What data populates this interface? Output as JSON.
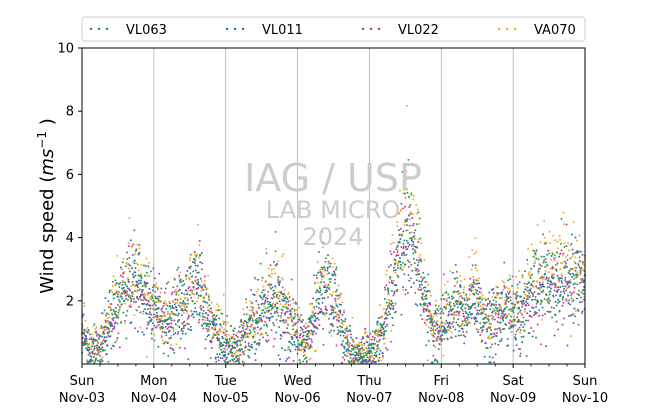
{
  "chart_data": {
    "type": "scatter",
    "ylabel_text": "Wind speed (",
    "ylabel_unit_base": "ms",
    "ylabel_unit_exp": "−1",
    "ylabel_close": " )",
    "ylim": [
      0,
      10
    ],
    "yticks": [
      "2",
      "4",
      "6",
      "8",
      "10"
    ],
    "xticks": [
      {
        "day": "Sun",
        "date": "Nov-03"
      },
      {
        "day": "Mon",
        "date": "Nov-04"
      },
      {
        "day": "Tue",
        "date": "Nov-05"
      },
      {
        "day": "Wed",
        "date": "Nov-06"
      },
      {
        "day": "Thu",
        "date": "Nov-07"
      },
      {
        "day": "Fri",
        "date": "Nov-08"
      },
      {
        "day": "Sat",
        "date": "Nov-09"
      },
      {
        "day": "Sun",
        "date": "Nov-10"
      }
    ],
    "x_days_range": [
      0,
      7
    ],
    "grid": "vertical",
    "legend_placement": "top",
    "watermark": [
      "IAG / USP",
      "LAB MICRO",
      "2024"
    ],
    "series": [
      {
        "name": "VL063",
        "color": "#1a9850",
        "profile": [
          [
            0.0,
            1.2
          ],
          [
            0.1,
            0.3
          ],
          [
            0.25,
            0.5
          ],
          [
            0.4,
            1.4
          ],
          [
            0.55,
            2.1
          ],
          [
            0.7,
            2.9
          ],
          [
            0.85,
            2.2
          ],
          [
            1.0,
            1.8
          ],
          [
            1.15,
            1.4
          ],
          [
            1.3,
            1.7
          ],
          [
            1.45,
            2.0
          ],
          [
            1.6,
            2.7
          ],
          [
            1.75,
            1.6
          ],
          [
            1.9,
            0.9
          ],
          [
            2.05,
            0.5
          ],
          [
            2.2,
            0.6
          ],
          [
            2.35,
            1.2
          ],
          [
            2.5,
            1.7
          ],
          [
            2.65,
            2.2
          ],
          [
            2.8,
            1.8
          ],
          [
            2.95,
            1.3
          ],
          [
            3.1,
            0.6
          ],
          [
            3.2,
            1.2
          ],
          [
            3.35,
            2.6
          ],
          [
            3.5,
            2.1
          ],
          [
            3.62,
            1.1
          ],
          [
            3.75,
            0.3
          ],
          [
            3.85,
            0.2
          ],
          [
            4.0,
            0.3
          ],
          [
            4.1,
            0.6
          ],
          [
            4.2,
            1.2
          ],
          [
            4.3,
            2.4
          ],
          [
            4.42,
            3.6
          ],
          [
            4.55,
            4.4
          ],
          [
            4.65,
            3.6
          ],
          [
            4.75,
            2.2
          ],
          [
            4.85,
            1.5
          ],
          [
            4.95,
            1.0
          ],
          [
            5.05,
            1.4
          ],
          [
            5.2,
            1.9
          ],
          [
            5.35,
            1.5
          ],
          [
            5.45,
            2.3
          ],
          [
            5.55,
            1.7
          ],
          [
            5.65,
            1.2
          ],
          [
            5.75,
            1.5
          ],
          [
            5.85,
            1.8
          ],
          [
            6.0,
            1.6
          ],
          [
            6.15,
            1.9
          ],
          [
            6.3,
            2.3
          ],
          [
            6.45,
            2.7
          ],
          [
            6.6,
            2.6
          ],
          [
            6.75,
            2.9
          ],
          [
            6.9,
            2.7
          ],
          [
            7.0,
            2.6
          ]
        ]
      },
      {
        "name": "VL011",
        "color": "#2b6cb0",
        "profile": [
          [
            0.0,
            1.0
          ],
          [
            0.1,
            0.4
          ],
          [
            0.25,
            0.5
          ],
          [
            0.4,
            1.3
          ],
          [
            0.55,
            2.0
          ],
          [
            0.7,
            2.7
          ],
          [
            0.85,
            2.0
          ],
          [
            1.0,
            1.7
          ],
          [
            1.15,
            1.3
          ],
          [
            1.3,
            1.6
          ],
          [
            1.45,
            1.9
          ],
          [
            1.6,
            2.5
          ],
          [
            1.75,
            1.5
          ],
          [
            1.9,
            0.8
          ],
          [
            2.05,
            0.4
          ],
          [
            2.2,
            0.6
          ],
          [
            2.35,
            1.1
          ],
          [
            2.5,
            1.6
          ],
          [
            2.65,
            2.0
          ],
          [
            2.8,
            1.7
          ],
          [
            2.95,
            1.2
          ],
          [
            3.1,
            0.5
          ],
          [
            3.2,
            1.1
          ],
          [
            3.35,
            2.4
          ],
          [
            3.5,
            2.0
          ],
          [
            3.62,
            1.0
          ],
          [
            3.75,
            0.4
          ],
          [
            3.85,
            0.3
          ],
          [
            4.0,
            0.4
          ],
          [
            4.1,
            0.6
          ],
          [
            4.2,
            1.1
          ],
          [
            4.3,
            2.2
          ],
          [
            4.42,
            3.3
          ],
          [
            4.55,
            4.0
          ],
          [
            4.65,
            3.3
          ],
          [
            4.75,
            2.0
          ],
          [
            4.85,
            1.4
          ],
          [
            4.95,
            1.0
          ],
          [
            5.05,
            1.3
          ],
          [
            5.2,
            1.8
          ],
          [
            5.35,
            1.4
          ],
          [
            5.45,
            2.1
          ],
          [
            5.55,
            1.6
          ],
          [
            5.65,
            1.1
          ],
          [
            5.75,
            1.4
          ],
          [
            5.85,
            1.7
          ],
          [
            6.0,
            1.5
          ],
          [
            6.15,
            1.8
          ],
          [
            6.3,
            2.2
          ],
          [
            6.45,
            2.5
          ],
          [
            6.6,
            2.4
          ],
          [
            6.75,
            2.7
          ],
          [
            6.9,
            2.5
          ],
          [
            7.0,
            2.4
          ]
        ]
      },
      {
        "name": "VL022",
        "color": "#c0389a",
        "profile": [
          [
            0.0,
            1.1
          ],
          [
            0.1,
            0.4
          ],
          [
            0.25,
            0.6
          ],
          [
            0.4,
            1.3
          ],
          [
            0.55,
            2.0
          ],
          [
            0.7,
            2.8
          ],
          [
            0.85,
            2.1
          ],
          [
            1.0,
            1.7
          ],
          [
            1.15,
            1.3
          ],
          [
            1.3,
            1.6
          ],
          [
            1.45,
            1.9
          ],
          [
            1.6,
            2.6
          ],
          [
            1.75,
            1.5
          ],
          [
            1.9,
            0.8
          ],
          [
            2.05,
            0.5
          ],
          [
            2.2,
            0.6
          ],
          [
            2.35,
            1.1
          ],
          [
            2.5,
            1.6
          ],
          [
            2.65,
            2.1
          ],
          [
            2.8,
            1.7
          ],
          [
            2.95,
            1.2
          ],
          [
            3.1,
            0.5
          ],
          [
            3.2,
            1.1
          ],
          [
            3.35,
            2.5
          ],
          [
            3.5,
            2.0
          ],
          [
            3.62,
            1.0
          ],
          [
            3.75,
            0.4
          ],
          [
            3.85,
            0.3
          ],
          [
            4.0,
            0.4
          ],
          [
            4.1,
            0.7
          ],
          [
            4.2,
            1.1
          ],
          [
            4.3,
            2.3
          ],
          [
            4.42,
            3.4
          ],
          [
            4.55,
            4.1
          ],
          [
            4.65,
            3.4
          ],
          [
            4.75,
            2.1
          ],
          [
            4.85,
            1.4
          ],
          [
            4.95,
            1.0
          ],
          [
            5.05,
            1.3
          ],
          [
            5.2,
            1.8
          ],
          [
            5.35,
            1.4
          ],
          [
            5.45,
            2.2
          ],
          [
            5.55,
            1.6
          ],
          [
            5.65,
            1.2
          ],
          [
            5.75,
            1.4
          ],
          [
            5.85,
            1.7
          ],
          [
            6.0,
            1.5
          ],
          [
            6.15,
            1.8
          ],
          [
            6.3,
            2.2
          ],
          [
            6.45,
            2.6
          ],
          [
            6.6,
            2.5
          ],
          [
            6.75,
            2.8
          ],
          [
            6.9,
            2.6
          ],
          [
            7.0,
            2.5
          ]
        ]
      },
      {
        "name": "VA070",
        "color": "#f5a623",
        "profile": [
          [
            0.0,
            1.4
          ],
          [
            0.1,
            0.5
          ],
          [
            0.25,
            0.6
          ],
          [
            0.4,
            1.5
          ],
          [
            0.55,
            2.3
          ],
          [
            0.7,
            3.1
          ],
          [
            0.85,
            2.4
          ],
          [
            1.0,
            2.0
          ],
          [
            1.15,
            1.5
          ],
          [
            1.3,
            1.8
          ],
          [
            1.45,
            2.1
          ],
          [
            1.6,
            2.9
          ],
          [
            1.75,
            1.8
          ],
          [
            1.9,
            1.0
          ],
          [
            2.05,
            0.6
          ],
          [
            2.2,
            0.7
          ],
          [
            2.35,
            1.3
          ],
          [
            2.5,
            1.8
          ],
          [
            2.65,
            2.4
          ],
          [
            2.8,
            2.0
          ],
          [
            2.95,
            1.4
          ],
          [
            3.1,
            0.6
          ],
          [
            3.2,
            1.3
          ],
          [
            3.35,
            2.8
          ],
          [
            3.5,
            2.3
          ],
          [
            3.62,
            1.2
          ],
          [
            3.75,
            0.4
          ],
          [
            3.85,
            0.3
          ],
          [
            4.0,
            0.4
          ],
          [
            4.1,
            0.7
          ],
          [
            4.2,
            1.3
          ],
          [
            4.3,
            2.6
          ],
          [
            4.42,
            3.9
          ],
          [
            4.55,
            5.2
          ],
          [
            4.65,
            3.9
          ],
          [
            4.75,
            2.4
          ],
          [
            4.85,
            1.6
          ],
          [
            4.95,
            1.1
          ],
          [
            5.05,
            1.5
          ],
          [
            5.2,
            2.1
          ],
          [
            5.35,
            1.7
          ],
          [
            5.45,
            3.0
          ],
          [
            5.55,
            1.9
          ],
          [
            5.65,
            1.3
          ],
          [
            5.75,
            1.6
          ],
          [
            5.85,
            2.0
          ],
          [
            6.0,
            1.8
          ],
          [
            6.15,
            2.1
          ],
          [
            6.3,
            2.5
          ],
          [
            6.45,
            2.9
          ],
          [
            6.6,
            2.8
          ],
          [
            6.75,
            3.1
          ],
          [
            6.9,
            2.9
          ],
          [
            7.0,
            2.8
          ]
        ]
      }
    ]
  }
}
